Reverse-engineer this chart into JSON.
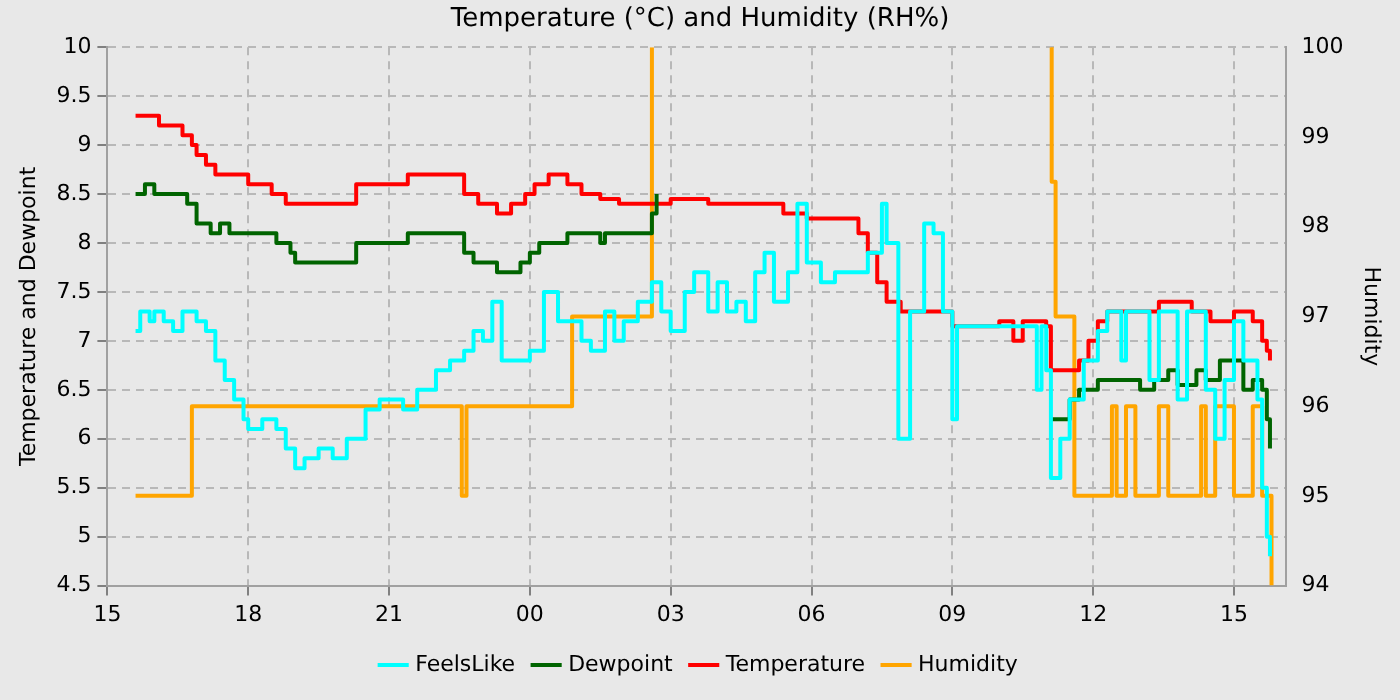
{
  "chart_data": {
    "type": "step",
    "title": "Temperature (°C) and Humidity (RH%)",
    "ylabel": "Temperature and Dewpoint",
    "y2label": "Humidity",
    "xlim": [
      "--01-01T15:00",
      "--01-02T16:06"
    ],
    "xticks": [
      {
        "value": "--01-01T15:00",
        "label": "15"
      },
      {
        "value": "--01-01T18:00",
        "label": "18"
      },
      {
        "value": "--01-01T21:00",
        "label": "21"
      },
      {
        "value": "--01-02T00:00",
        "label": "00"
      },
      {
        "value": "--01-02T03:00",
        "label": "03"
      },
      {
        "value": "--01-02T06:00",
        "label": "06"
      },
      {
        "value": "--01-02T09:00",
        "label": "09"
      },
      {
        "value": "--01-02T12:00",
        "label": "12"
      },
      {
        "value": "--01-02T15:00",
        "label": "15"
      }
    ],
    "ylim": [
      4.5,
      10
    ],
    "yticks": [
      4.5,
      5,
      5.5,
      6,
      6.5,
      7,
      7.5,
      8,
      8.5,
      9,
      9.5,
      10
    ],
    "y2lim": [
      94,
      100
    ],
    "y2ticks": [
      94,
      95,
      96,
      97,
      98,
      99,
      100
    ],
    "grid": true,
    "legend": "bottom",
    "line_style": "solid",
    "marker": "none",
    "series": [
      {
        "name": "FeelsLike",
        "color": "#00ffff",
        "x": [
          "--01-01T15:36",
          "--01-01T15:42",
          "--01-01T15:54",
          "--01-01T16:00",
          "--01-01T16:12",
          "--01-01T16:24",
          "--01-01T16:36",
          "--01-01T16:54",
          "--01-01T17:06",
          "--01-01T17:18",
          "--01-01T17:30",
          "--01-01T17:42",
          "--01-01T17:54",
          "--01-01T18:00",
          "--01-01T18:18",
          "--01-01T18:36",
          "--01-01T18:48",
          "--01-01T19:00",
          "--01-01T19:12",
          "--01-01T19:30",
          "--01-01T19:48",
          "--01-01T20:06",
          "--01-01T20:30",
          "--01-01T20:48",
          "--01-01T21:00",
          "--01-01T21:18",
          "--01-01T21:36",
          "--01-01T22:00",
          "--01-01T22:18",
          "--01-01T22:36",
          "--01-01T22:48",
          "--01-01T23:00",
          "--01-01T23:12",
          "--01-01T23:24",
          "--01-01T23:48",
          "--01-02T00:00",
          "--01-02T00:18",
          "--01-02T00:36",
          "--01-02T00:54",
          "--01-02T01:06",
          "--01-02T01:18",
          "--01-02T01:36",
          "--01-02T01:48",
          "--01-02T02:00",
          "--01-02T02:18",
          "--01-02T02:36",
          "--01-02T02:48",
          "--01-02T03:00",
          "--01-02T03:18",
          "--01-02T03:30",
          "--01-02T03:48",
          "--01-02T04:00",
          "--01-02T04:12",
          "--01-02T04:24",
          "--01-02T04:36",
          "--01-02T04:48",
          "--01-02T05:00",
          "--01-02T05:12",
          "--01-02T05:30",
          "--01-02T05:42",
          "--01-02T05:54",
          "--01-02T06:12",
          "--01-02T06:30",
          "--01-02T06:54",
          "--01-02T07:12",
          "--01-02T07:30",
          "--01-02T07:36",
          "--01-02T07:51",
          "--01-02T08:06",
          "--01-02T08:24",
          "--01-02T08:36",
          "--01-02T08:48",
          "--01-02T09:00",
          "--01-02T09:06",
          "--01-02T10:48",
          "--01-02T10:54",
          "--01-02T11:00",
          "--01-02T11:06",
          "--01-02T11:18",
          "--01-02T11:30",
          "--01-02T11:48",
          "--01-02T12:06",
          "--01-02T12:18",
          "--01-02T12:36",
          "--01-02T12:42",
          "--01-02T13:12",
          "--01-02T13:24",
          "--01-02T13:48",
          "--01-02T14:00",
          "--01-02T14:24",
          "--01-02T14:36",
          "--01-02T14:48",
          "--01-02T15:00",
          "--01-02T15:12",
          "--01-02T15:30",
          "--01-02T15:36",
          "--01-02T15:42",
          "--01-02T15:46"
        ],
        "values": [
          7.1,
          7.3,
          7.2,
          7.3,
          7.2,
          7.1,
          7.3,
          7.2,
          7.1,
          6.8,
          6.6,
          6.4,
          6.2,
          6.1,
          6.2,
          6.1,
          5.9,
          5.7,
          5.8,
          5.9,
          5.8,
          6.0,
          6.3,
          6.4,
          6.4,
          6.3,
          6.5,
          6.7,
          6.8,
          6.9,
          7.1,
          7.0,
          7.4,
          6.8,
          6.8,
          6.9,
          7.5,
          7.2,
          7.2,
          7.0,
          6.9,
          7.3,
          7.0,
          7.2,
          7.4,
          7.6,
          7.3,
          7.1,
          7.5,
          7.7,
          7.3,
          7.6,
          7.3,
          7.4,
          7.2,
          7.7,
          7.9,
          7.4,
          7.7,
          8.4,
          7.8,
          7.6,
          7.7,
          7.7,
          7.9,
          8.4,
          8.0,
          6.0,
          7.3,
          8.2,
          8.1,
          7.3,
          6.2,
          7.15,
          6.5,
          7.15,
          6.7,
          5.6,
          6.0,
          6.4,
          6.8,
          7.1,
          7.3,
          6.8,
          7.3,
          6.6,
          7.3,
          6.4,
          7.3,
          6.5,
          6.0,
          6.6,
          7.2,
          6.8,
          6.4,
          5.5,
          5.0,
          4.8
        ]
      },
      {
        "name": "Dewpoint",
        "color": "#006400",
        "x": [
          "--01-01T15:36",
          "--01-01T15:48",
          "--01-01T16:00",
          "--01-01T16:42",
          "--01-01T16:54",
          "--01-01T17:12",
          "--01-01T17:24",
          "--01-01T17:36",
          "--01-01T18:36",
          "--01-01T18:54",
          "--01-01T19:00",
          "--01-01T20:18",
          "--01-01T21:24",
          "--01-01T22:36",
          "--01-01T22:48",
          "--01-01T23:06",
          "--01-01T23:18",
          "--01-01T23:48",
          "--01-02T00:00",
          "--01-02T00:12",
          "--01-02T00:48",
          "--01-02T01:30",
          "--01-02T01:36",
          "--01-02T02:00",
          "--01-02T02:36",
          "--01-02T02:42",
          "--01-02T02:48",
          "--01-02T11:06",
          "--01-02T11:30",
          "--01-02T11:42",
          "--01-02T12:00",
          "--01-02T12:06",
          "--01-02T13:00",
          "--01-02T13:18",
          "--01-02T13:36",
          "--01-02T13:48",
          "--01-02T14:12",
          "--01-02T14:24",
          "--01-02T14:42",
          "--01-02T15:12",
          "--01-02T15:24",
          "--01-02T15:36",
          "--01-02T15:42",
          "--01-02T15:46"
        ],
        "values": [
          8.5,
          8.6,
          8.5,
          8.4,
          8.2,
          8.1,
          8.2,
          8.1,
          8.0,
          7.9,
          7.8,
          8.0,
          8.1,
          7.9,
          7.8,
          7.8,
          7.7,
          7.8,
          7.9,
          8.0,
          8.1,
          8.0,
          8.1,
          8.1,
          8.3,
          8.5,
          null,
          6.2,
          6.4,
          6.5,
          6.5,
          6.6,
          6.5,
          6.6,
          6.7,
          6.55,
          6.7,
          6.6,
          6.8,
          6.5,
          6.6,
          6.5,
          6.2,
          5.9
        ]
      },
      {
        "name": "Temperature",
        "color": "#ff0000",
        "x": [
          "--01-01T15:36",
          "--01-01T16:06",
          "--01-01T16:36",
          "--01-01T16:48",
          "--01-01T16:54",
          "--01-01T17:06",
          "--01-01T17:18",
          "--01-01T18:00",
          "--01-01T18:30",
          "--01-01T18:48",
          "--01-01T20:18",
          "--01-01T21:24",
          "--01-01T22:36",
          "--01-01T22:54",
          "--01-01T23:18",
          "--01-01T23:36",
          "--01-01T23:54",
          "--01-02T00:06",
          "--01-02T00:24",
          "--01-02T00:48",
          "--01-02T01:06",
          "--01-02T01:30",
          "--01-02T01:54",
          "--01-02T03:00",
          "--01-02T03:48",
          "--01-02T05:24",
          "--01-02T05:54",
          "--01-02T07:00",
          "--01-02T07:12",
          "--01-02T07:24",
          "--01-02T07:36",
          "--01-02T07:54",
          "--01-02T09:00",
          "--01-02T10:00",
          "--01-02T10:18",
          "--01-02T10:30",
          "--01-02T11:00",
          "--01-02T11:06",
          "--01-02T11:42",
          "--01-02T11:54",
          "--01-02T12:06",
          "--01-02T12:18",
          "--01-02T13:24",
          "--01-02T14:06",
          "--01-02T14:30",
          "--01-02T15:00",
          "--01-02T15:24",
          "--01-02T15:36",
          "--01-02T15:42",
          "--01-02T15:46"
        ],
        "values": [
          9.3,
          9.2,
          9.1,
          9.0,
          8.9,
          8.8,
          8.7,
          8.6,
          8.5,
          8.4,
          8.6,
          8.7,
          8.5,
          8.4,
          8.3,
          8.4,
          8.5,
          8.6,
          8.7,
          8.6,
          8.5,
          8.45,
          8.4,
          8.45,
          8.4,
          8.3,
          8.25,
          8.1,
          7.9,
          7.6,
          7.4,
          7.3,
          7.15,
          7.2,
          7.0,
          7.2,
          7.15,
          6.7,
          6.8,
          7.0,
          7.2,
          7.3,
          7.4,
          7.3,
          7.2,
          7.3,
          7.2,
          7.0,
          6.9,
          6.8
        ]
      },
      {
        "name": "Humidity",
        "color": "#ffa500",
        "axis": "y2",
        "x": [
          "--01-01T15:36",
          "--01-01T16:48",
          "--01-01T22:33",
          "--01-01T22:39",
          "--01-02T00:54",
          "--01-02T02:36",
          "--01-02T02:54",
          "--01-02T11:06",
          "--01-02T11:07",
          "--01-02T11:12",
          "--01-02T11:36",
          "--01-02T12:24",
          "--01-02T12:30",
          "--01-02T12:42",
          "--01-02T12:54",
          "--01-02T13:24",
          "--01-02T13:36",
          "--01-02T14:18",
          "--01-02T14:24",
          "--01-02T14:36",
          "--01-02T15:00",
          "--01-02T15:24",
          "--01-02T15:36",
          "--01-02T15:48"
        ],
        "values": [
          95.0,
          96.0,
          95.0,
          96.0,
          97.0,
          100,
          null,
          100,
          98.5,
          97.0,
          95.0,
          96.0,
          95.0,
          96.0,
          95.0,
          96.0,
          95.0,
          96.0,
          95.0,
          96.0,
          95.0,
          96.0,
          95.0,
          94.0
        ]
      }
    ]
  }
}
